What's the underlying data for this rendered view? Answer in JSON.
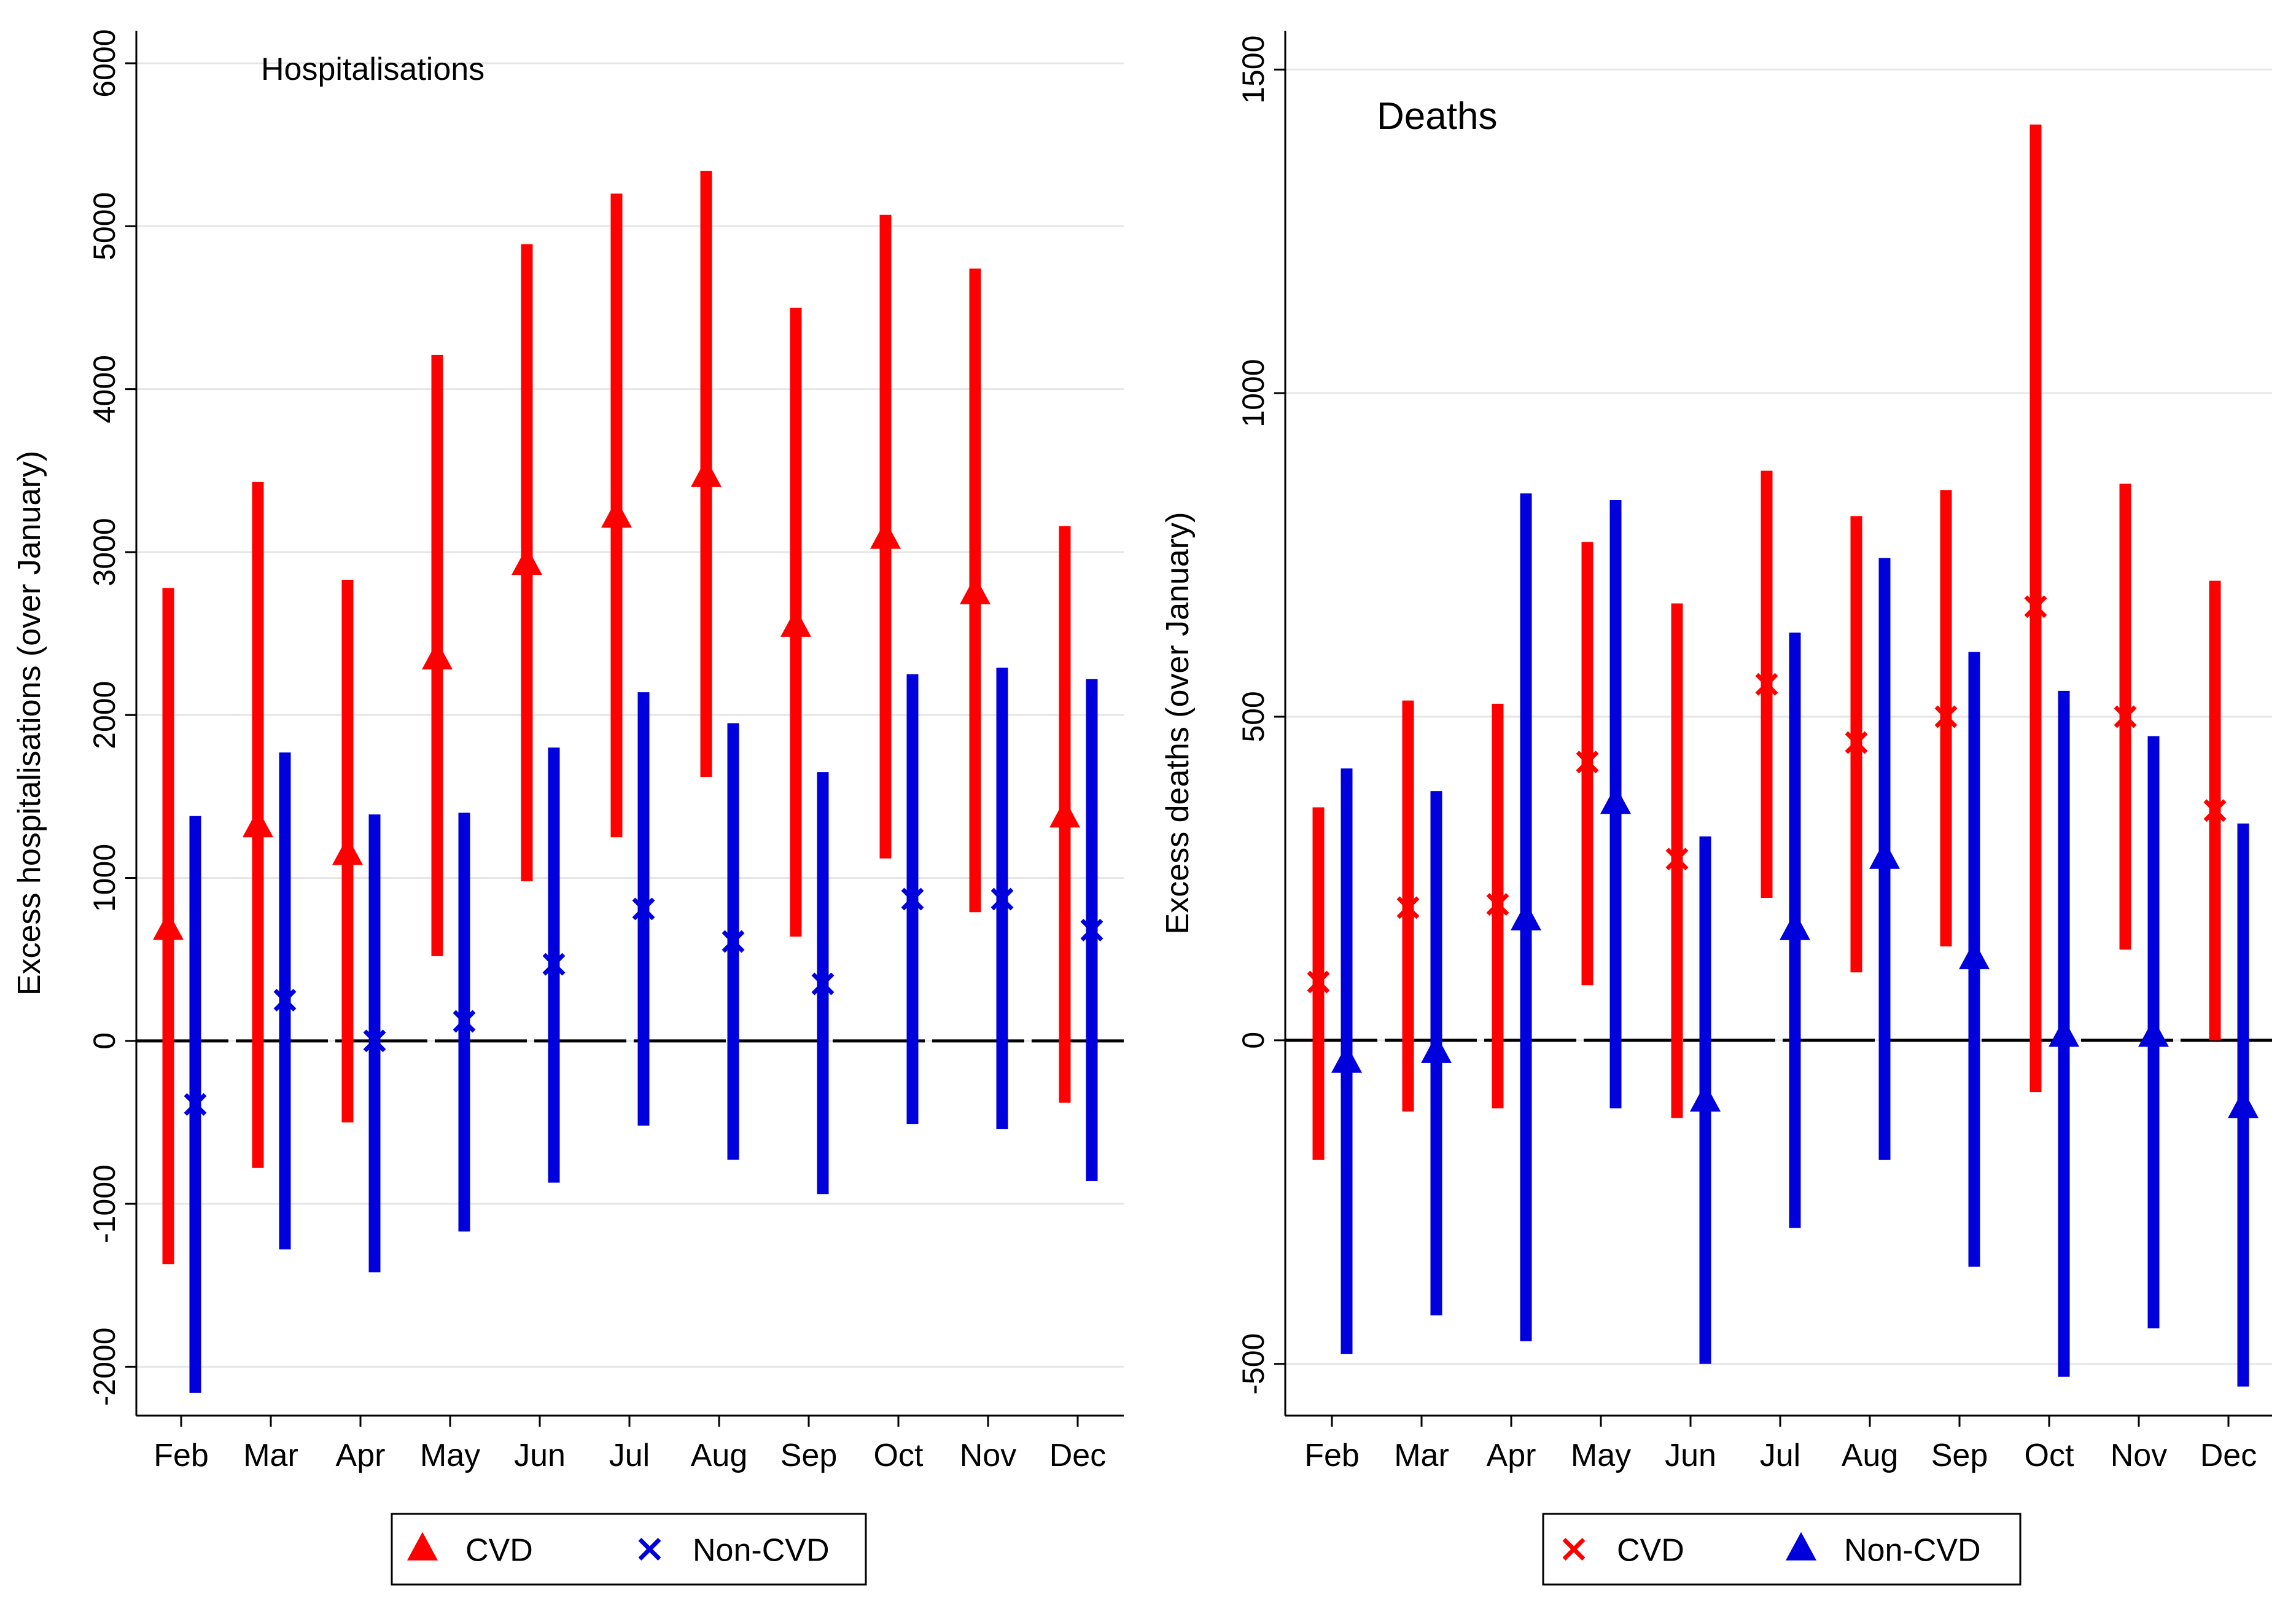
{
  "colors": {
    "cvd": "#ff0000",
    "non_cvd": "#0000dd",
    "axis": "#000000",
    "grid": "#e6e6e6",
    "zero_line": "#000000"
  },
  "chart_data": [
    {
      "type": "errorbar",
      "title": "Hospitalisations",
      "ylabel": "Excess hospitalisations (over January)",
      "xlabel": "",
      "ylim": [
        -2300,
        6200
      ],
      "yticks": [
        "-2000",
        "-1000",
        "0",
        "1000",
        "2000",
        "3000",
        "4000",
        "5000",
        "6000"
      ],
      "categories": [
        "Feb",
        "Mar",
        "Apr",
        "May",
        "Jun",
        "Jul",
        "Aug",
        "Sep",
        "Oct",
        "Nov",
        "Dec"
      ],
      "legend": {
        "position": "bottom-center",
        "entries": [
          "CVD",
          "Non-CVD"
        ]
      },
      "series": [
        {
          "name": "CVD",
          "marker": "triangle",
          "color_key": "cvd",
          "values": [
            700,
            1330,
            1160,
            2360,
            2940,
            3230,
            3480,
            2560,
            3100,
            2760,
            1390
          ],
          "lower": [
            -1370,
            -780,
            -500,
            520,
            980,
            1250,
            1620,
            640,
            1120,
            790,
            -380
          ],
          "upper": [
            2780,
            3430,
            2830,
            4210,
            4890,
            5200,
            5340,
            4500,
            5070,
            4740,
            3160
          ]
        },
        {
          "name": "Non-CVD",
          "marker": "x",
          "color_key": "non_cvd",
          "values": [
            -390,
            250,
            0,
            120,
            470,
            810,
            610,
            350,
            870,
            870,
            680
          ],
          "lower": [
            -2160,
            -1280,
            -1420,
            -1170,
            -870,
            -520,
            -730,
            -940,
            -510,
            -540,
            -860
          ],
          "upper": [
            1380,
            1770,
            1390,
            1400,
            1800,
            2140,
            1950,
            1650,
            2250,
            2290,
            2220
          ]
        }
      ]
    },
    {
      "type": "errorbar",
      "title": "Deaths",
      "ylabel": "Excess deaths (over January)",
      "xlabel": "",
      "ylim": [
        -580,
        1560
      ],
      "yticks": [
        "-500",
        "0",
        "500",
        "1000",
        "1500"
      ],
      "categories": [
        "Feb",
        "Mar",
        "Apr",
        "May",
        "Jun",
        "Jul",
        "Aug",
        "Sep",
        "Oct",
        "Nov",
        "Dec"
      ],
      "legend": {
        "position": "bottom-center",
        "entries": [
          "CVD",
          "Non-CVD"
        ]
      },
      "series": [
        {
          "name": "CVD",
          "marker": "x",
          "color_key": "cvd",
          "values": [
            90,
            205,
            210,
            430,
            280,
            550,
            460,
            500,
            670,
            500,
            355
          ],
          "lower": [
            -185,
            -110,
            -105,
            85,
            -120,
            220,
            105,
            145,
            -80,
            140,
            0
          ],
          "upper": [
            360,
            525,
            520,
            770,
            675,
            880,
            810,
            850,
            1415,
            860,
            710
          ]
        },
        {
          "name": "Non-CVD",
          "marker": "triangle",
          "color_key": "non_cvd",
          "values": [
            -30,
            -15,
            190,
            370,
            -90,
            175,
            285,
            130,
            10,
            10,
            -100
          ],
          "lower": [
            -485,
            -425,
            -465,
            -105,
            -500,
            -290,
            -185,
            -350,
            -520,
            -445,
            -535
          ],
          "upper": [
            420,
            385,
            845,
            835,
            315,
            630,
            745,
            600,
            540,
            470,
            335
          ]
        }
      ]
    }
  ]
}
